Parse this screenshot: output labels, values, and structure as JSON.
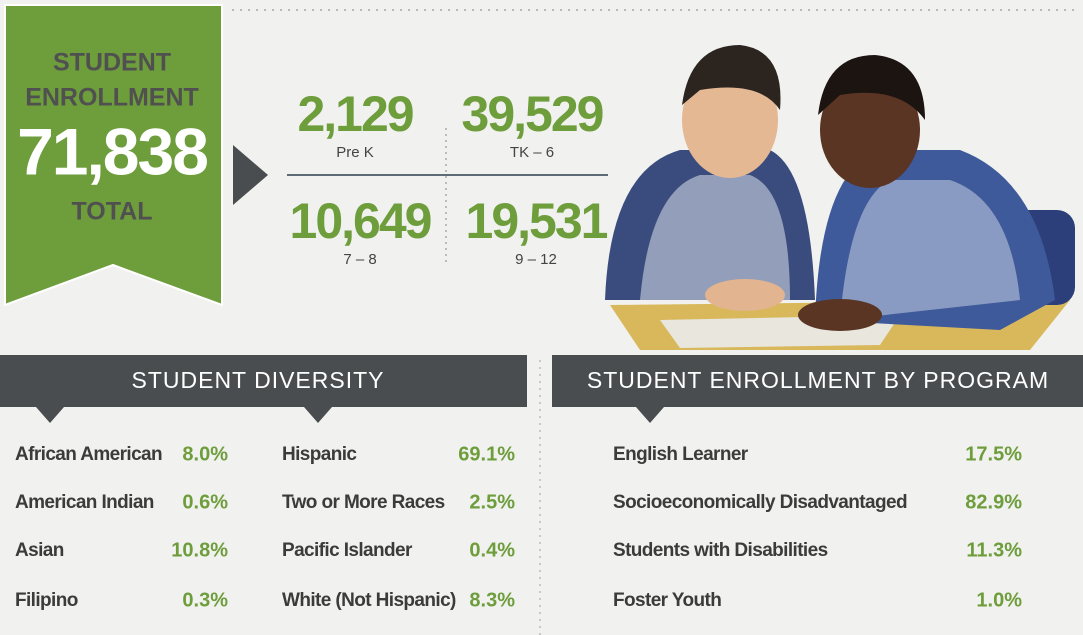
{
  "banner": {
    "line1": "STUDENT",
    "line2": "ENROLLMENT",
    "total": "71,838",
    "line3": "TOTAL"
  },
  "grades": [
    {
      "value": "2,129",
      "label": "Pre K"
    },
    {
      "value": "39,529",
      "label": "TK – 6"
    },
    {
      "value": "10,649",
      "label": "7 – 8"
    },
    {
      "value": "19,531",
      "label": "9 – 12"
    }
  ],
  "diversity": {
    "title": "STUDENT DIVERSITY",
    "items": [
      {
        "name": "African American",
        "value": "8.0%"
      },
      {
        "name": "American Indian",
        "value": "0.6%"
      },
      {
        "name": "Asian",
        "value": "10.8%"
      },
      {
        "name": "Filipino",
        "value": "0.3%"
      },
      {
        "name": "Hispanic",
        "value": "69.1%"
      },
      {
        "name": "Two or More Races",
        "value": "2.5%"
      },
      {
        "name": "Pacific Islander",
        "value": "0.4%"
      },
      {
        "name": "White (Not Hispanic)",
        "value": "8.3%"
      }
    ]
  },
  "program": {
    "title": "STUDENT ENROLLMENT BY PROGRAM",
    "items": [
      {
        "name": "English Learner",
        "value": "17.5%"
      },
      {
        "name": "Socioeconomically Disadvantaged",
        "value": "82.9%"
      },
      {
        "name": "Students with Disabilities",
        "value": "11.3%"
      },
      {
        "name": "Foster Youth",
        "value": "1.0%"
      }
    ]
  }
}
